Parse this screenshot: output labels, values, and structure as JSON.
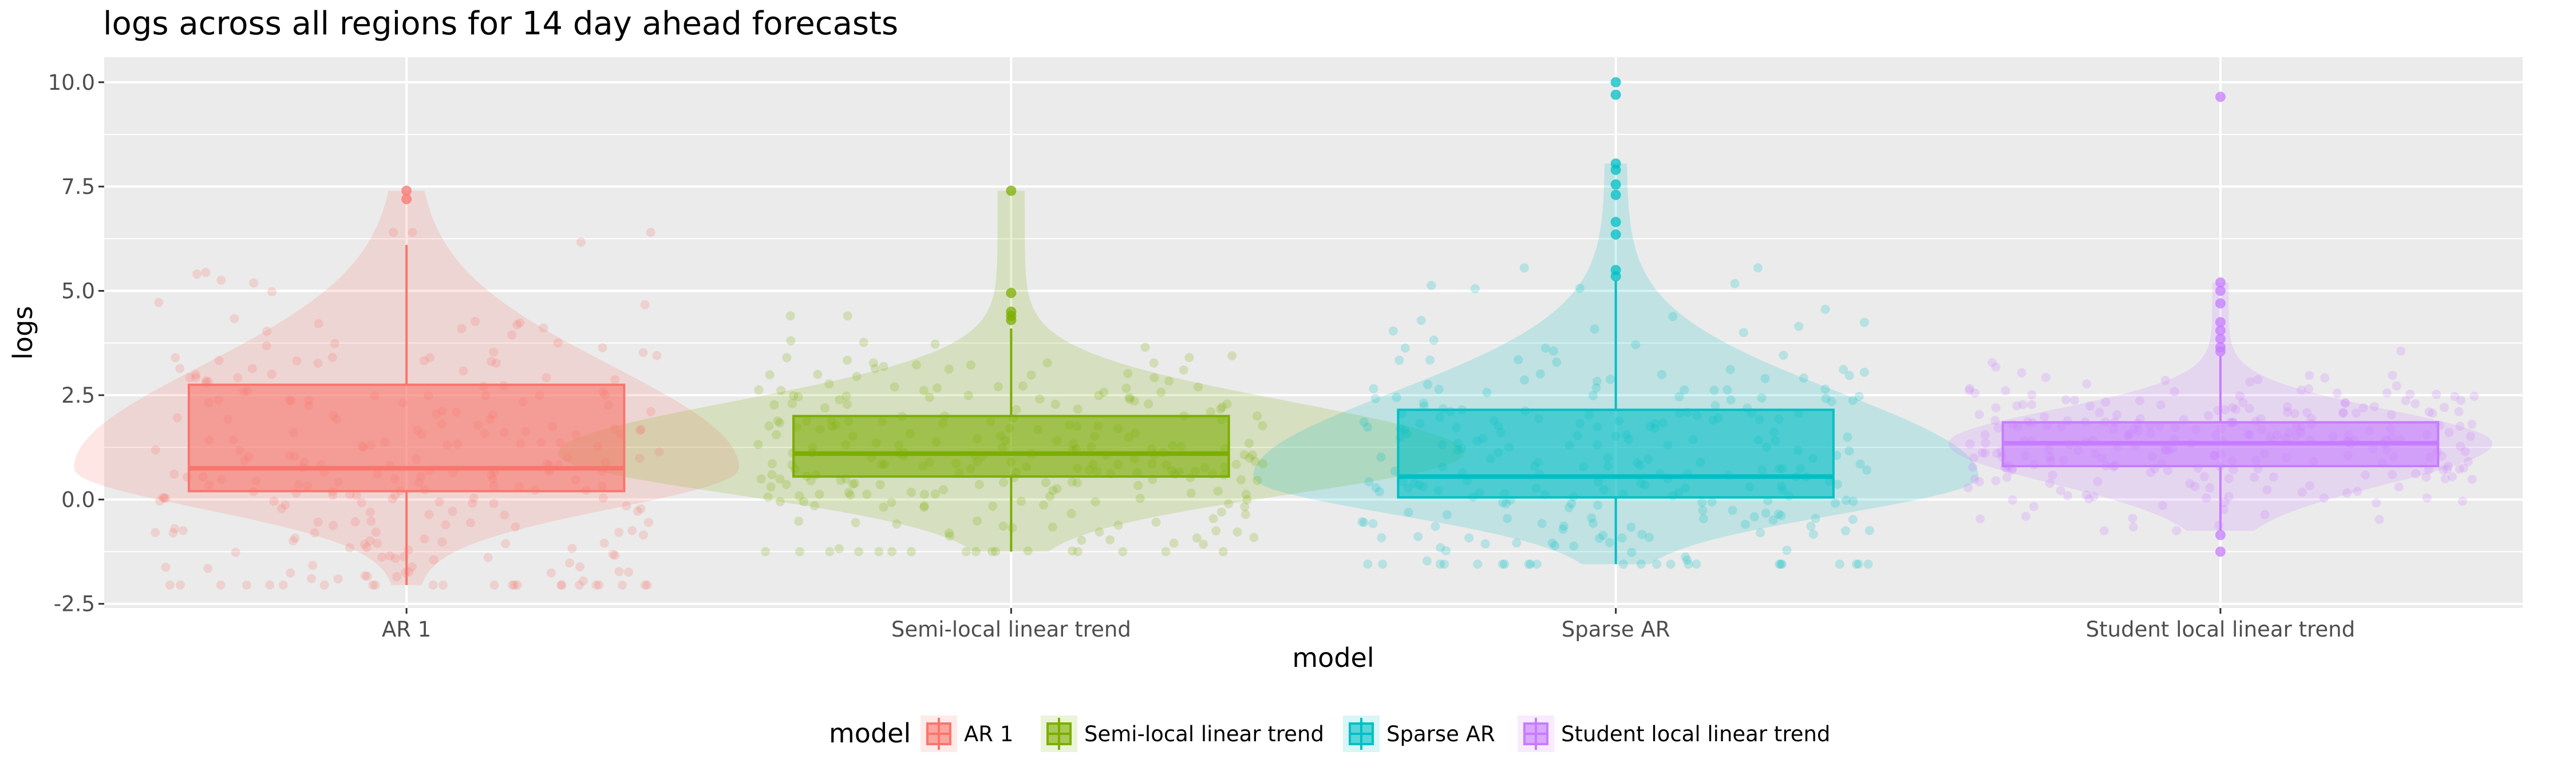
{
  "chart_data": {
    "type": "box",
    "title": "logs across all regions for 14 day ahead forecasts",
    "xlabel": "model",
    "ylabel": "logs",
    "ylim": [
      -2.6,
      10.6
    ],
    "yticks": [
      -2.5,
      0.0,
      2.5,
      5.0,
      7.5,
      10.0
    ],
    "ytick_labels": [
      "-2.5",
      "0.0",
      "2.5",
      "5.0",
      "7.5",
      "10.0"
    ],
    "categories": [
      "AR 1",
      "Semi-local linear trend",
      "Sparse AR",
      "Student local linear trend"
    ],
    "legend": {
      "title": "model",
      "position": "bottom"
    },
    "grid": true,
    "colors": [
      "#F8766D",
      "#7CAE00",
      "#00BFC4",
      "#C77CFF"
    ],
    "boxes": [
      {
        "model": "AR 1",
        "q1": 0.2,
        "median": 0.75,
        "q3": 2.75,
        "whisker_low": -2.05,
        "whisker_high": 6.1,
        "outliers": [
          7.2,
          7.4
        ]
      },
      {
        "model": "Semi-local linear trend",
        "q1": 0.55,
        "median": 1.1,
        "q3": 2.0,
        "whisker_low": -1.25,
        "whisker_high": 4.1,
        "outliers": [
          4.3,
          4.4,
          4.5,
          4.95,
          7.4
        ]
      },
      {
        "model": "Sparse AR",
        "q1": 0.05,
        "median": 0.55,
        "q3": 2.15,
        "whisker_low": -1.55,
        "whisker_high": 5.25,
        "outliers": [
          5.35,
          5.5,
          6.35,
          6.65,
          7.3,
          7.55,
          7.9,
          8.05,
          9.7,
          10.0
        ]
      },
      {
        "model": "Student local linear trend",
        "q1": 0.8,
        "median": 1.35,
        "q3": 1.85,
        "whisker_low": -0.75,
        "whisker_high": 3.45,
        "outliers": [
          3.55,
          3.65,
          3.85,
          4.05,
          4.25,
          4.7,
          5.0,
          5.2,
          -0.85,
          -1.25,
          9.65
        ]
      }
    ]
  }
}
